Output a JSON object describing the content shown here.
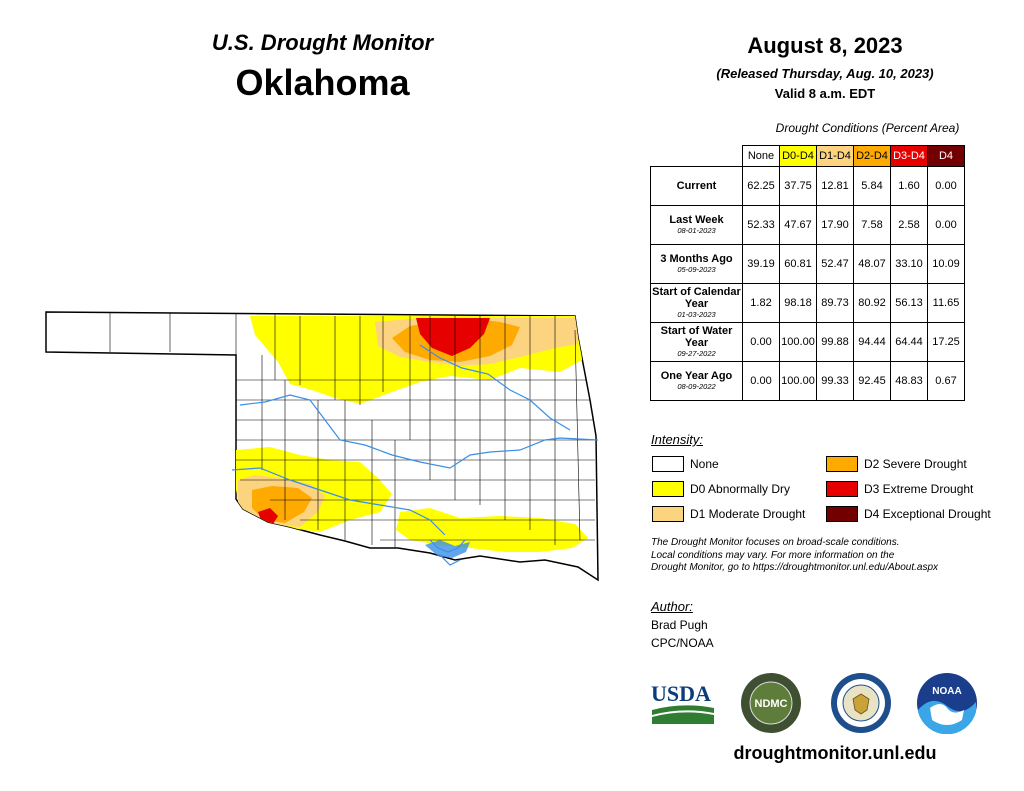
{
  "header": {
    "program": "U.S. Drought Monitor",
    "state": "Oklahoma",
    "date": "August 8, 2023",
    "released": "(Released Thursday, Aug. 10, 2023)",
    "valid": "Valid 8 a.m. EDT"
  },
  "table": {
    "caption": "Drought Conditions (Percent Area)",
    "columns": [
      "None",
      "D0-D4",
      "D1-D4",
      "D2-D4",
      "D3-D4",
      "D4"
    ],
    "column_colors": [
      "#ffffff",
      "#ffff00",
      "#fcd37f",
      "#ffaa00",
      "#e60000",
      "#730000"
    ],
    "rows": [
      {
        "label": "Current",
        "date": "",
        "values": [
          "62.25",
          "37.75",
          "12.81",
          "5.84",
          "1.60",
          "0.00"
        ]
      },
      {
        "label": "Last Week",
        "date": "08-01-2023",
        "values": [
          "52.33",
          "47.67",
          "17.90",
          "7.58",
          "2.58",
          "0.00"
        ]
      },
      {
        "label": "3 Months Ago",
        "date": "05-09-2023",
        "values": [
          "39.19",
          "60.81",
          "52.47",
          "48.07",
          "33.10",
          "10.09"
        ]
      },
      {
        "label": "Start of Calendar Year",
        "date": "01-03-2023",
        "values": [
          "1.82",
          "98.18",
          "89.73",
          "80.92",
          "56.13",
          "11.65"
        ]
      },
      {
        "label": "Start of Water Year",
        "date": "09-27-2022",
        "values": [
          "0.00",
          "100.00",
          "99.88",
          "94.44",
          "64.44",
          "17.25"
        ]
      },
      {
        "label": "One Year Ago",
        "date": "08-09-2022",
        "values": [
          "0.00",
          "100.00",
          "99.33",
          "92.45",
          "48.83",
          "0.67"
        ]
      }
    ]
  },
  "legend": {
    "heading": "Intensity:",
    "items": [
      {
        "label": "None",
        "color": "#ffffff"
      },
      {
        "label": "D0 Abnormally Dry",
        "color": "#ffff00"
      },
      {
        "label": "D1 Moderate Drought",
        "color": "#fcd37f"
      },
      {
        "label": "D2 Severe Drought",
        "color": "#ffaa00"
      },
      {
        "label": "D3 Extreme Drought",
        "color": "#e60000"
      },
      {
        "label": "D4 Exceptional Drought",
        "color": "#730000"
      }
    ]
  },
  "disclaimer": [
    "The Drought Monitor focuses on broad-scale conditions.",
    "Local conditions may vary. For more information on the",
    "Drought Monitor, go to https://droughtmonitor.unl.edu/About.aspx"
  ],
  "author": {
    "heading": "Author:",
    "name": "Brad Pugh",
    "org": "CPC/NOAA"
  },
  "logos": {
    "usda": "USDA",
    "ndmc": "NDMC",
    "noaa": "NOAA"
  },
  "website": "droughtmonitor.unl.edu",
  "colors": {
    "water": "#3a8ee6",
    "county_line": "#000000"
  }
}
